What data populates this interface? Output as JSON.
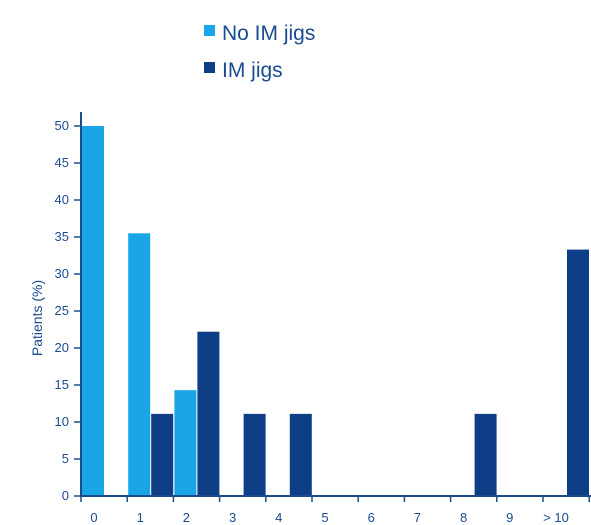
{
  "chart_data": {
    "type": "bar",
    "title": "",
    "xlabel": "",
    "ylabel": "Patients (%)",
    "ylim": [
      0,
      50
    ],
    "yticks": [
      0,
      5,
      10,
      15,
      20,
      25,
      30,
      35,
      40,
      45,
      50
    ],
    "categories": [
      "0",
      "1",
      "2",
      "3",
      "4",
      "5",
      "6",
      "7",
      "8",
      "9",
      "> 10"
    ],
    "legend_position": "top-center",
    "grid": false,
    "series": [
      {
        "name": "No IM jigs",
        "color": "#1aa6e6",
        "values": [
          50,
          35.5,
          14.3,
          0,
          0,
          0,
          0,
          0,
          0,
          0,
          0
        ]
      },
      {
        "name": "IM jigs",
        "color": "#0d3e86",
        "values": [
          0,
          11.1,
          22.2,
          11.1,
          11.1,
          0,
          0,
          0,
          11.1,
          0,
          33.3
        ]
      }
    ]
  }
}
